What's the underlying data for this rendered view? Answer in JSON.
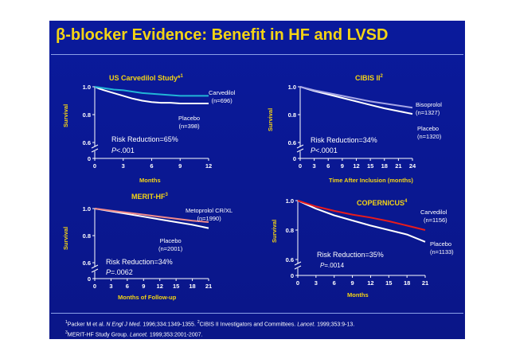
{
  "slide": {
    "title": "β-blocker Evidence: Benefit in HF and LVSD",
    "colors": {
      "background": "#0a1a9c",
      "title": "#f4d414",
      "text": "#ffffff",
      "treatment_line_1": "#21b5d6",
      "treatment_line_2": "#a6a6e6",
      "treatment_line_3": "#f08a8a",
      "treatment_line_4": "#e81c1c",
      "placebo_line": "#ffffff"
    },
    "references": {
      "line1_a": "Packer M et al. ",
      "line1_b": "N Engl J Med.",
      "line1_c": " 1996;334:1349-1355. ",
      "line1_d": "CIBIS II Investigators and Committees. ",
      "line1_e": "Lancet.",
      "line1_f": " 1999;353:9-13.",
      "line2_a": "MERIT-HF Study Group. ",
      "line2_b": "Lancet.",
      "line2_c": " 1999;353:2001-2007.",
      "sup1": "1",
      "sup2": "2",
      "sup3": "3"
    }
  },
  "chart_data": [
    {
      "type": "line",
      "title": "US Carvedilol Study*",
      "title_sup": "1",
      "xlabel": "Months",
      "ylabel": "Survival",
      "xticks": [
        0,
        3,
        6,
        9,
        12
      ],
      "xlim": [
        0,
        12
      ],
      "yticks": [
        0,
        0.6,
        0.8,
        1.0
      ],
      "ytick_labels": [
        "0",
        "0.6",
        "0.8",
        "1.0"
      ],
      "ylim_broken": [
        0.6,
        1.0
      ],
      "series": [
        {
          "name": "Carvedilol",
          "annotation": "(n=696)",
          "x": [
            0,
            0.5,
            1,
            2,
            3,
            4,
            5,
            6,
            7,
            8,
            9,
            10,
            11,
            12
          ],
          "y": [
            1.0,
            0.995,
            0.99,
            0.98,
            0.975,
            0.965,
            0.955,
            0.95,
            0.945,
            0.94,
            0.935,
            0.935,
            0.935,
            0.935
          ]
        },
        {
          "name": "Placebo",
          "annotation": "(n=398)",
          "x": [
            0,
            0.5,
            1,
            2,
            3,
            4,
            5,
            6,
            7,
            8,
            9,
            10,
            11,
            12
          ],
          "y": [
            1.0,
            0.985,
            0.975,
            0.955,
            0.935,
            0.915,
            0.9,
            0.89,
            0.885,
            0.885,
            0.88,
            0.88,
            0.88,
            0.88
          ]
        }
      ],
      "annotations": [
        "Risk Reduction=65%",
        "P<.001"
      ],
      "p_prefix": "P",
      "p_value": "<.001"
    },
    {
      "type": "line",
      "title": "CIBIS II",
      "title_sup": "2",
      "xlabel": "Time After Inclusion (months)",
      "ylabel": "Survival",
      "xticks": [
        0,
        3,
        6,
        9,
        12,
        15,
        18,
        21,
        24
      ],
      "xlim": [
        0,
        24
      ],
      "yticks": [
        0,
        0.6,
        0.8,
        1.0
      ],
      "ytick_labels": [
        "0",
        "0.6",
        "0.8",
        "1.0"
      ],
      "ylim_broken": [
        0.6,
        1.0
      ],
      "series": [
        {
          "name": "Bisoprolol",
          "annotation": "(n=1327)",
          "x": [
            0,
            3,
            6,
            9,
            12,
            15,
            18,
            21,
            24
          ],
          "y": [
            1.0,
            0.975,
            0.955,
            0.935,
            0.915,
            0.895,
            0.88,
            0.865,
            0.85
          ]
        },
        {
          "name": "Placebo",
          "annotation": "(n=1320)",
          "x": [
            0,
            3,
            6,
            9,
            12,
            15,
            18,
            21,
            24
          ],
          "y": [
            1.0,
            0.97,
            0.945,
            0.92,
            0.895,
            0.87,
            0.845,
            0.825,
            0.805
          ]
        }
      ],
      "annotations": [
        "Risk Reduction=34%",
        "P<.0001"
      ],
      "p_prefix": "P",
      "p_value": "<.0001"
    },
    {
      "type": "line",
      "title": "MERIT-HF",
      "title_sup": "3",
      "xlabel": "Months of Follow-up",
      "ylabel": "Survival",
      "xticks": [
        0,
        3,
        6,
        9,
        12,
        15,
        18,
        21
      ],
      "xlim": [
        0,
        21
      ],
      "yticks": [
        0,
        0.6,
        0.8,
        1.0
      ],
      "ytick_labels": [
        "0",
        "0.6",
        "0.8",
        "1.0"
      ],
      "ylim_broken": [
        0.6,
        1.0
      ],
      "series": [
        {
          "name": "Metoprolol CR/XL",
          "annotation": "(n=1990)",
          "x": [
            0,
            3,
            6,
            9,
            12,
            15,
            18,
            21
          ],
          "y": [
            1.0,
            0.985,
            0.97,
            0.955,
            0.94,
            0.925,
            0.91,
            0.9
          ]
        },
        {
          "name": "Placebo",
          "annotation": "(n=2001)",
          "x": [
            0,
            3,
            6,
            9,
            12,
            15,
            18,
            21
          ],
          "y": [
            1.0,
            0.98,
            0.96,
            0.94,
            0.92,
            0.9,
            0.88,
            0.855
          ]
        }
      ],
      "annotations": [
        "Risk Reduction=34%",
        "P=.0062"
      ],
      "p_prefix": "P",
      "p_value": "=.0062"
    },
    {
      "type": "line",
      "title": "COPERNICUS",
      "title_sup": "4",
      "xlabel": "Months",
      "ylabel": "Survival",
      "xticks": [
        0,
        3,
        6,
        9,
        12,
        15,
        18,
        21
      ],
      "xlim": [
        0,
        21
      ],
      "yticks": [
        0,
        0.6,
        0.8,
        1.0
      ],
      "ytick_labels": [
        "0",
        "0.6",
        "0.8",
        "1.0"
      ],
      "ylim_broken": [
        0.6,
        1.0
      ],
      "series": [
        {
          "name": "Carvedilol",
          "annotation": "(n=1156)",
          "x": [
            0,
            3,
            6,
            9,
            12,
            15,
            18,
            21
          ],
          "y": [
            1.0,
            0.96,
            0.93,
            0.905,
            0.885,
            0.86,
            0.83,
            0.8
          ]
        },
        {
          "name": "Placebo",
          "annotation": "(n=1133)",
          "x": [
            0,
            3,
            6,
            9,
            12,
            15,
            18,
            21
          ],
          "y": [
            1.0,
            0.945,
            0.9,
            0.865,
            0.83,
            0.8,
            0.77,
            0.72
          ]
        }
      ],
      "annotations": [
        "Risk Reduction=35%",
        "P=.0014"
      ],
      "p_prefix": "P",
      "p_value": "=.0014"
    }
  ]
}
